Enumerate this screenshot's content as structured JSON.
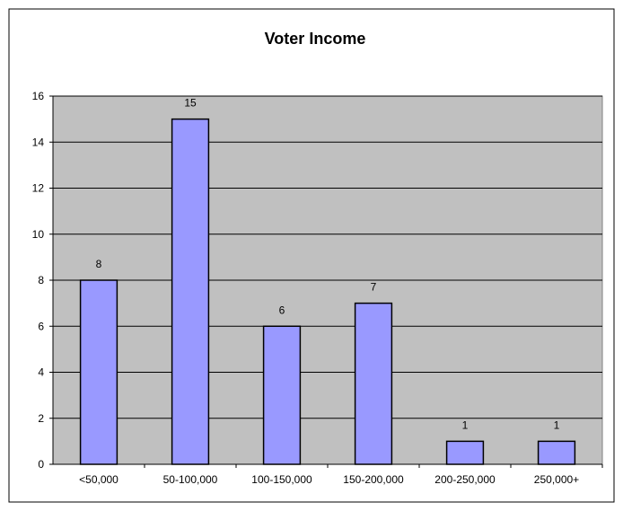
{
  "chart_data": {
    "type": "bar",
    "title": "Voter Income",
    "xlabel": "",
    "ylabel": "",
    "categories": [
      "<50,000",
      "50-100,000",
      "100-150,000",
      "150-200,000",
      "200-250,000",
      "250,000+"
    ],
    "values": [
      8,
      15,
      6,
      7,
      1,
      1
    ],
    "ylim": [
      0,
      16
    ],
    "yticks": [
      0,
      2,
      4,
      6,
      8,
      10,
      12,
      14,
      16
    ],
    "grid": true,
    "legend": "none",
    "colors": {
      "bar_fill": "#9999ff",
      "bar_stroke": "#000000",
      "plot_background": "#c0c0c0",
      "gridline": "#000000"
    }
  }
}
